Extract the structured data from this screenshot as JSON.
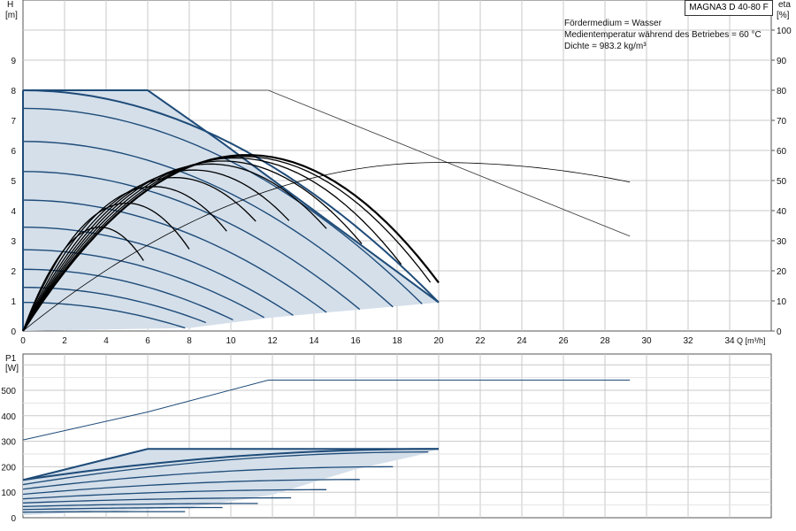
{
  "header": {
    "model": "MAGNA3 D 40-80 F",
    "medium": "Fördermedium = Wasser",
    "temperature": "Medientemperatur während des Betriebes = 60 °C",
    "density": "Dichte = 983.2 kg/m³"
  },
  "colors": {
    "fill": "#d4dfea",
    "curve": "#1e4b78",
    "grid": "#c8c8c8",
    "efficiency": "#000000",
    "reference": "#333333"
  },
  "chart_data": [
    {
      "type": "line",
      "name": "head",
      "ylabel_top": "H",
      "ylabel_unit": "[m]",
      "y2label_top": "eta",
      "y2label_unit": "[%]",
      "xlabel": "Q [m³/h]",
      "xlim": [
        0,
        36
      ],
      "ylim": [
        0,
        11
      ],
      "y2lim": [
        0,
        110
      ],
      "xticks": [
        "0",
        "2",
        "4",
        "6",
        "8",
        "10",
        "12",
        "14",
        "16",
        "18",
        "20",
        "22",
        "24",
        "26",
        "28",
        "30",
        "32",
        "34"
      ],
      "yticks": [
        "0",
        "1",
        "2",
        "3",
        "4",
        "5",
        "6",
        "7",
        "8",
        "9"
      ],
      "y2ticks": [
        "0",
        "10",
        "20",
        "30",
        "40",
        "50",
        "60",
        "70",
        "80",
        "90",
        "100"
      ],
      "grid": true,
      "operating_envelope": {
        "upper": [
          [
            0,
            8
          ],
          [
            6,
            8
          ],
          [
            9.5,
            6.3
          ],
          [
            20,
            0.95
          ]
        ],
        "lower": [
          [
            20,
            0.95
          ],
          [
            16,
            0.7
          ],
          [
            12,
            0.45
          ],
          [
            8,
            0.1
          ],
          [
            0,
            0
          ]
        ]
      },
      "head_curves": [
        {
          "shutoff": 8.0,
          "end_q": 20.0,
          "end_h": 0.95
        },
        {
          "shutoff": 7.4,
          "end_q": 19.2,
          "end_h": 0.9
        },
        {
          "shutoff": 6.3,
          "end_q": 17.8,
          "end_h": 0.8
        },
        {
          "shutoff": 5.3,
          "end_q": 16.2,
          "end_h": 0.72
        },
        {
          "shutoff": 4.35,
          "end_q": 14.6,
          "end_h": 0.62
        },
        {
          "shutoff": 3.45,
          "end_q": 13.0,
          "end_h": 0.52
        },
        {
          "shutoff": 2.7,
          "end_q": 11.6,
          "end_h": 0.45
        },
        {
          "shutoff": 2.05,
          "end_q": 10.1,
          "end_h": 0.37
        },
        {
          "shutoff": 1.45,
          "end_q": 8.8,
          "end_h": 0.28
        },
        {
          "shutoff": 0.95,
          "end_q": 7.8,
          "end_h": 0.1
        }
      ],
      "max_curve_extension": {
        "points": [
          [
            6,
            8
          ],
          [
            11.8,
            8
          ],
          [
            29.2,
            3.15
          ]
        ]
      },
      "efficiency_curves": [
        {
          "peak_q": 10.8,
          "peak_eta": 58.5,
          "end_q": 20.0,
          "end_eta": 19
        },
        {
          "peak_q": 10.6,
          "peak_eta": 58.0,
          "end_q": 19.6,
          "end_eta": 20
        },
        {
          "peak_q": 10.2,
          "peak_eta": 57.5,
          "end_q": 18.2,
          "end_eta": 20
        },
        {
          "peak_q": 9.6,
          "peak_eta": 56.5,
          "end_q": 16.3,
          "end_eta": 17
        },
        {
          "peak_q": 9.0,
          "peak_eta": 55.5,
          "end_q": 14.6,
          "end_eta": 17
        },
        {
          "peak_q": 8.2,
          "peak_eta": 53.5,
          "end_q": 12.8,
          "end_eta": 16
        },
        {
          "peak_q": 7.3,
          "peak_eta": 51.0,
          "end_q": 11.2,
          "end_eta": 17
        },
        {
          "peak_q": 6.3,
          "peak_eta": 48.0,
          "end_q": 9.8,
          "end_eta": 18
        },
        {
          "peak_q": 5.0,
          "peak_eta": 42.5,
          "end_q": 8.0,
          "end_eta": 12
        },
        {
          "peak_q": 3.7,
          "peak_eta": 34.5,
          "end_q": 5.8,
          "end_eta": 30
        }
      ],
      "efficiency_extension": {
        "peak_q": 20.0,
        "peak_eta": 56,
        "end_q": 29.2,
        "end_eta": 46,
        "start_q": 0
      }
    },
    {
      "type": "line",
      "name": "power",
      "ylabel_top": "P1",
      "ylabel_unit": "[W]",
      "xlim": [
        0,
        36
      ],
      "ylim": [
        0,
        600
      ],
      "yticks": [
        "0",
        "100",
        "200",
        "300",
        "400",
        "500"
      ],
      "grid": true,
      "reference_curve": [
        [
          0,
          305
        ],
        [
          6,
          415
        ],
        [
          11.8,
          540
        ],
        [
          29.2,
          540
        ]
      ],
      "envelope": {
        "upper": [
          [
            0,
            148
          ],
          [
            6,
            270
          ],
          [
            20,
            270
          ]
        ],
        "lower": [
          [
            20,
            270
          ],
          [
            19,
            245
          ],
          [
            16,
            190
          ],
          [
            12,
            90
          ],
          [
            8,
            40
          ],
          [
            0,
            10
          ]
        ]
      },
      "power_curves": [
        {
          "p0": 148,
          "end_q": 20.0,
          "end_p": 270
        },
        {
          "p0": 130,
          "end_q": 19.5,
          "end_p": 258
        },
        {
          "p0": 112,
          "end_q": 17.8,
          "end_p": 200
        },
        {
          "p0": 92,
          "end_q": 16.2,
          "end_p": 150
        },
        {
          "p0": 74,
          "end_q": 14.6,
          "end_p": 110
        },
        {
          "p0": 58,
          "end_q": 12.9,
          "end_p": 78
        },
        {
          "p0": 44,
          "end_q": 11.3,
          "end_p": 56
        },
        {
          "p0": 32,
          "end_q": 9.6,
          "end_p": 40
        },
        {
          "p0": 22,
          "end_q": 7.8,
          "end_p": 24
        }
      ]
    }
  ]
}
